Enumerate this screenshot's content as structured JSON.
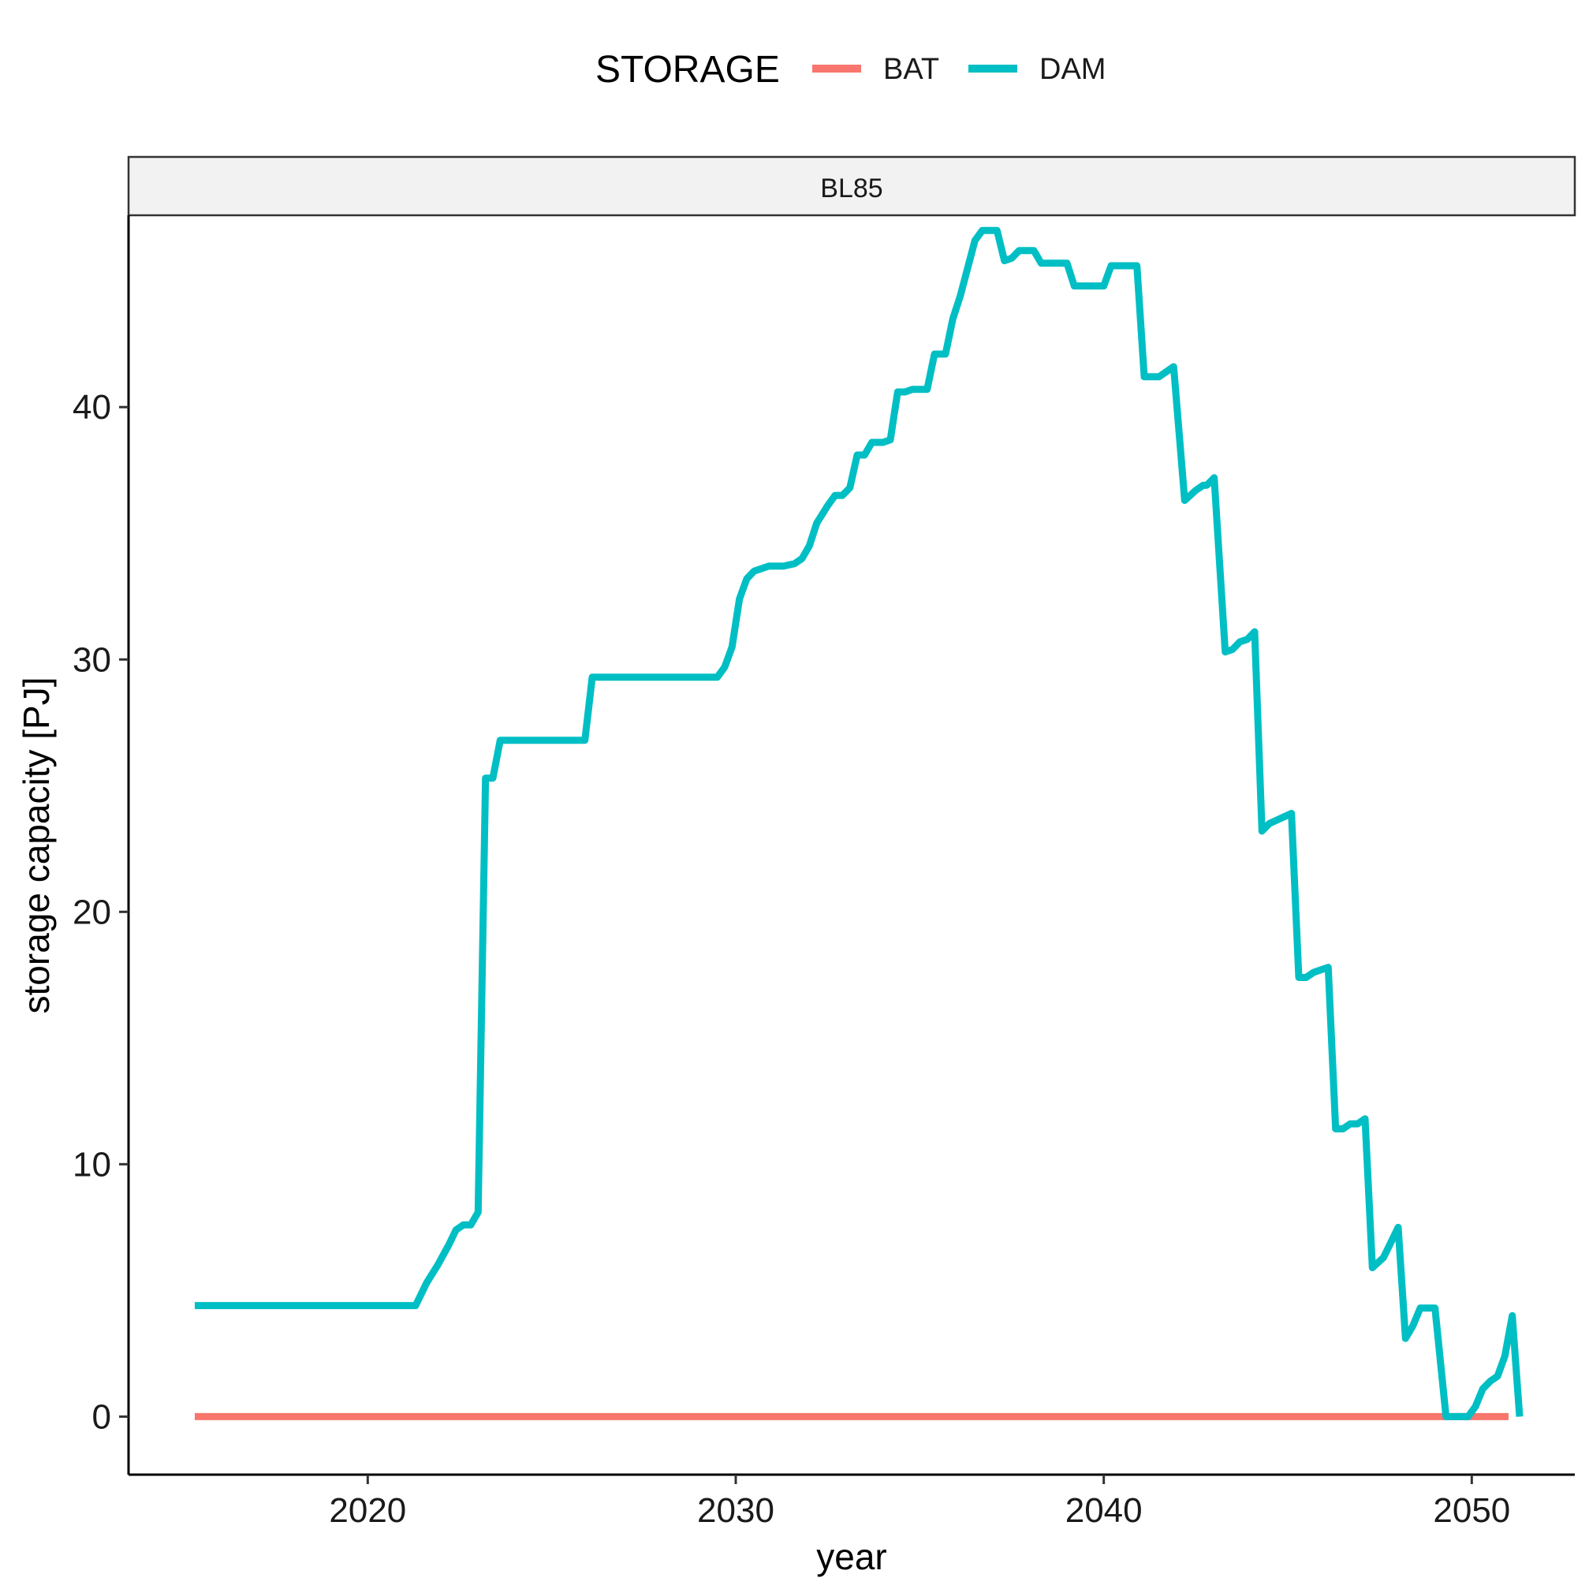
{
  "chart_data": {
    "type": "line",
    "facet": "BL85",
    "xlabel": "year",
    "ylabel": "storage capacity [PJ]",
    "xlim": [
      2013.5,
      2052.8
    ],
    "ylim": [
      -2.3,
      47.6
    ],
    "x_ticks": [
      2020,
      2030,
      2040,
      2050
    ],
    "x_tick_labels": [
      "2020",
      "2030",
      "2040",
      "2050"
    ],
    "y_ticks": [
      0,
      10,
      20,
      30,
      40
    ],
    "y_tick_labels": [
      "0",
      "10",
      "20",
      "30",
      "40"
    ],
    "grid": false,
    "legend": {
      "title": "STORAGE",
      "position": "top",
      "entries": [
        "BAT",
        "DAM"
      ]
    },
    "series": [
      {
        "name": "BAT",
        "color": "#F8766D",
        "points": [
          [
            2015.3,
            0
          ],
          [
            2051.0,
            0
          ]
        ]
      },
      {
        "name": "DAM",
        "color": "#00BFC4",
        "points": [
          [
            2015.3,
            4.4
          ],
          [
            2021.3,
            4.4
          ],
          [
            2021.6,
            5.3
          ],
          [
            2021.9,
            6.0
          ],
          [
            2022.2,
            6.8
          ],
          [
            2022.4,
            7.4
          ],
          [
            2022.6,
            7.6
          ],
          [
            2022.8,
            7.6
          ],
          [
            2023.0,
            8.1
          ],
          [
            2023.2,
            25.3
          ],
          [
            2023.4,
            25.3
          ],
          [
            2023.6,
            26.8
          ],
          [
            2025.9,
            26.8
          ],
          [
            2026.1,
            29.3
          ],
          [
            2029.5,
            29.3
          ],
          [
            2029.7,
            29.7
          ],
          [
            2029.9,
            30.5
          ],
          [
            2030.1,
            32.4
          ],
          [
            2030.3,
            33.2
          ],
          [
            2030.5,
            33.5
          ],
          [
            2030.9,
            33.7
          ],
          [
            2031.3,
            33.7
          ],
          [
            2031.6,
            33.8
          ],
          [
            2031.8,
            34.0
          ],
          [
            2032.0,
            34.5
          ],
          [
            2032.2,
            35.4
          ],
          [
            2032.5,
            36.1
          ],
          [
            2032.7,
            36.5
          ],
          [
            2032.9,
            36.5
          ],
          [
            2033.1,
            36.8
          ],
          [
            2033.3,
            38.1
          ],
          [
            2033.5,
            38.1
          ],
          [
            2033.7,
            38.6
          ],
          [
            2034.0,
            38.6
          ],
          [
            2034.2,
            38.7
          ],
          [
            2034.4,
            40.6
          ],
          [
            2034.6,
            40.6
          ],
          [
            2034.8,
            40.7
          ],
          [
            2035.2,
            40.7
          ],
          [
            2035.4,
            42.1
          ],
          [
            2035.7,
            42.1
          ],
          [
            2035.9,
            43.5
          ],
          [
            2036.1,
            44.4
          ],
          [
            2036.3,
            45.5
          ],
          [
            2036.5,
            46.6
          ],
          [
            2036.7,
            47.0
          ],
          [
            2037.1,
            47.0
          ],
          [
            2037.3,
            45.8
          ],
          [
            2037.5,
            45.9
          ],
          [
            2037.7,
            46.2
          ],
          [
            2038.1,
            46.2
          ],
          [
            2038.3,
            45.7
          ],
          [
            2039.0,
            45.7
          ],
          [
            2039.2,
            44.8
          ],
          [
            2040.0,
            44.8
          ],
          [
            2040.2,
            45.6
          ],
          [
            2040.9,
            45.6
          ],
          [
            2041.1,
            41.2
          ],
          [
            2041.5,
            41.2
          ],
          [
            2041.9,
            41.6
          ],
          [
            2042.2,
            36.3
          ],
          [
            2042.5,
            36.7
          ],
          [
            2042.7,
            36.9
          ],
          [
            2042.8,
            36.9
          ],
          [
            2043.0,
            37.2
          ],
          [
            2043.3,
            30.3
          ],
          [
            2043.5,
            30.4
          ],
          [
            2043.7,
            30.7
          ],
          [
            2043.9,
            30.8
          ],
          [
            2044.1,
            31.1
          ],
          [
            2044.3,
            23.2
          ],
          [
            2044.5,
            23.5
          ],
          [
            2045.1,
            23.9
          ],
          [
            2045.3,
            17.4
          ],
          [
            2045.5,
            17.4
          ],
          [
            2045.7,
            17.6
          ],
          [
            2045.9,
            17.7
          ],
          [
            2046.1,
            17.8
          ],
          [
            2046.3,
            11.4
          ],
          [
            2046.5,
            11.4
          ],
          [
            2046.7,
            11.6
          ],
          [
            2046.9,
            11.6
          ],
          [
            2047.1,
            11.8
          ],
          [
            2047.3,
            5.9
          ],
          [
            2047.6,
            6.3
          ],
          [
            2047.8,
            6.9
          ],
          [
            2048.0,
            7.5
          ],
          [
            2048.2,
            3.1
          ],
          [
            2048.4,
            3.6
          ],
          [
            2048.6,
            4.3
          ],
          [
            2049.0,
            4.3
          ],
          [
            2049.3,
            0.0
          ],
          [
            2049.9,
            0.0
          ],
          [
            2050.1,
            0.4
          ],
          [
            2050.3,
            1.1
          ],
          [
            2050.5,
            1.4
          ],
          [
            2050.7,
            1.6
          ],
          [
            2050.9,
            2.4
          ],
          [
            2051.1,
            4.0
          ],
          [
            2051.3,
            0.0
          ]
        ]
      }
    ]
  }
}
